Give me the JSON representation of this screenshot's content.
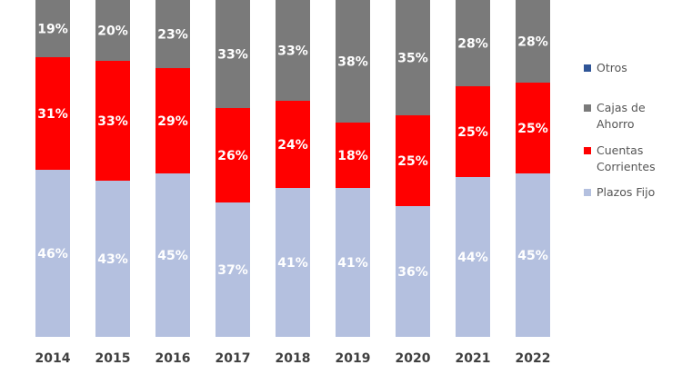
{
  "chart_data": {
    "type": "bar",
    "stacked": true,
    "categories": [
      "2014",
      "2015",
      "2016",
      "2017",
      "2018",
      "2019",
      "2020",
      "2021",
      "2022"
    ],
    "series": [
      {
        "name": "Plazos Fijo",
        "color": "#b4c0df",
        "values": [
          46,
          43,
          45,
          37,
          41,
          41,
          36,
          44,
          45
        ]
      },
      {
        "name": "Cuentas Corrientes",
        "color": "#ff0000",
        "values": [
          31,
          33,
          29,
          26,
          24,
          18,
          25,
          25,
          25
        ]
      },
      {
        "name": "Cajas de Ahorro",
        "color": "#7a7a7a",
        "values": [
          19,
          20,
          23,
          33,
          33,
          38,
          35,
          28,
          28
        ]
      },
      {
        "name": "Otros",
        "color": "#2f5597",
        "values": [
          0,
          0,
          0,
          0,
          0,
          0,
          0,
          0,
          0
        ]
      }
    ],
    "data_labels": [
      [
        "46%",
        "43%",
        "45%",
        "37%",
        "41%",
        "41%",
        "36%",
        "44%",
        "45%"
      ],
      [
        "31%",
        "33%",
        "29%",
        "26%",
        "24%",
        "18%",
        "25%",
        "25%",
        "25%"
      ],
      [
        "19%",
        "20%",
        "23%",
        "33%",
        "33%",
        "38%",
        "35%",
        "28%",
        "28%"
      ]
    ],
    "legend_order": [
      "Otros",
      "Cajas de Ahorro",
      "Cuentas Corrientes",
      "Plazos Fijo"
    ],
    "legend_lines": {
      "Otros": [
        "Otros"
      ],
      "Cajas de Ahorro": [
        "Cajas de",
        "Ahorro"
      ],
      "Cuentas Corrientes": [
        "Cuentas",
        "Corrientes"
      ],
      "Plazos Fijo": [
        "Plazos Fijo"
      ]
    },
    "legend_position": "right",
    "ylim": [
      0,
      100
    ],
    "grid": false
  }
}
